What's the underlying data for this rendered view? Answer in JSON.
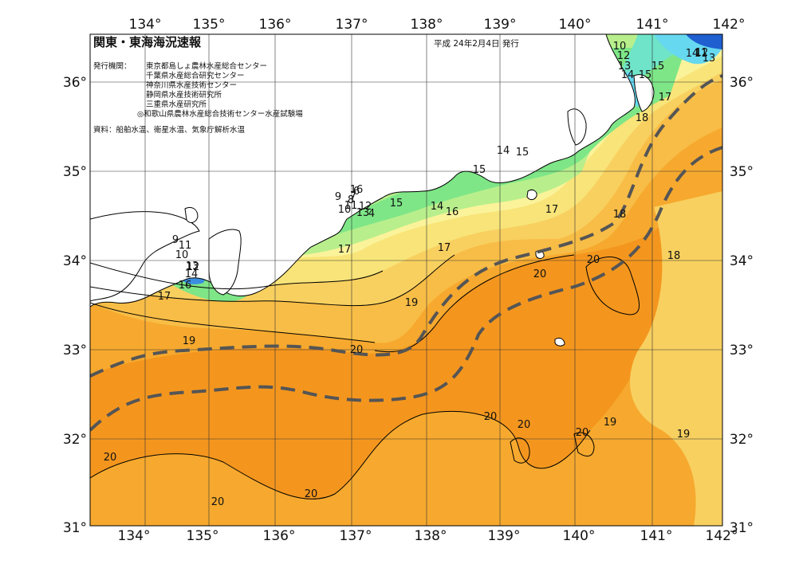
{
  "title": "関東・東海海況速報",
  "issue_date": "平成 24年2月4日 発行",
  "agencies_label": "発行機関：",
  "agencies": [
    "東京都島しょ農林水産総合センター",
    "千葉県水産総合研究センター",
    "神奈川県水産技術センター",
    "静岡県水産技術研究所",
    "三重県水産研究所",
    "◎和歌山県農林水産総合技術センター水産試験場"
  ],
  "sources": "資料：船舶水温、衛星水温、気象庁解析水温",
  "axes": {
    "longitude_ticks": [
      "134°",
      "135°",
      "136°",
      "137°",
      "138°",
      "139°",
      "140°",
      "141°",
      "142°"
    ],
    "latitude_ticks": [
      "36°",
      "35°",
      "34°",
      "33°",
      "32°",
      "31°"
    ]
  },
  "colors": {
    "warm_core": "#f4961e",
    "warm": "#f6a92e",
    "mid_orange": "#f8bd46",
    "yellow_orange": "#f8d060",
    "yellow": "#f8e478",
    "pale_yellow": "#fbf39a",
    "light_green": "#b8ef8c",
    "green": "#7ee687",
    "aqua": "#6fe4c8",
    "cyan": "#66d8f0",
    "blue": "#3c8ee0",
    "deep_blue": "#1f5fd0",
    "land": "#ffffff",
    "kuroshio_axis": "#555555"
  },
  "isotherm_labels": [
    {
      "text": "20"
    },
    {
      "text": "20"
    },
    {
      "text": "20"
    },
    {
      "text": "20"
    },
    {
      "text": "20"
    },
    {
      "text": "20"
    },
    {
      "text": "20"
    },
    {
      "text": "20"
    },
    {
      "text": "20"
    },
    {
      "text": "19"
    },
    {
      "text": "19"
    },
    {
      "text": "19"
    },
    {
      "text": "19"
    },
    {
      "text": "18"
    },
    {
      "text": "18"
    },
    {
      "text": "18"
    },
    {
      "text": "17"
    },
    {
      "text": "17"
    },
    {
      "text": "17"
    },
    {
      "text": "17"
    },
    {
      "text": "17"
    },
    {
      "text": "16"
    },
    {
      "text": "16"
    },
    {
      "text": "16"
    },
    {
      "text": "15"
    },
    {
      "text": "15"
    },
    {
      "text": "15"
    },
    {
      "text": "15"
    },
    {
      "text": "15"
    },
    {
      "text": "14"
    },
    {
      "text": "14"
    },
    {
      "text": "14"
    },
    {
      "text": "14"
    },
    {
      "text": "14"
    },
    {
      "text": "13"
    },
    {
      "text": "13"
    },
    {
      "text": "13"
    },
    {
      "text": "13"
    },
    {
      "text": "12"
    },
    {
      "text": "12"
    },
    {
      "text": "12"
    },
    {
      "text": "12"
    },
    {
      "text": "11"
    },
    {
      "text": "11"
    },
    {
      "text": "11"
    },
    {
      "text": "10"
    },
    {
      "text": "10"
    },
    {
      "text": "10"
    },
    {
      "text": "9"
    },
    {
      "text": "9"
    },
    {
      "text": "8"
    },
    {
      "text": "7"
    },
    {
      "text": "6"
    },
    {
      "text": "4"
    }
  ]
}
